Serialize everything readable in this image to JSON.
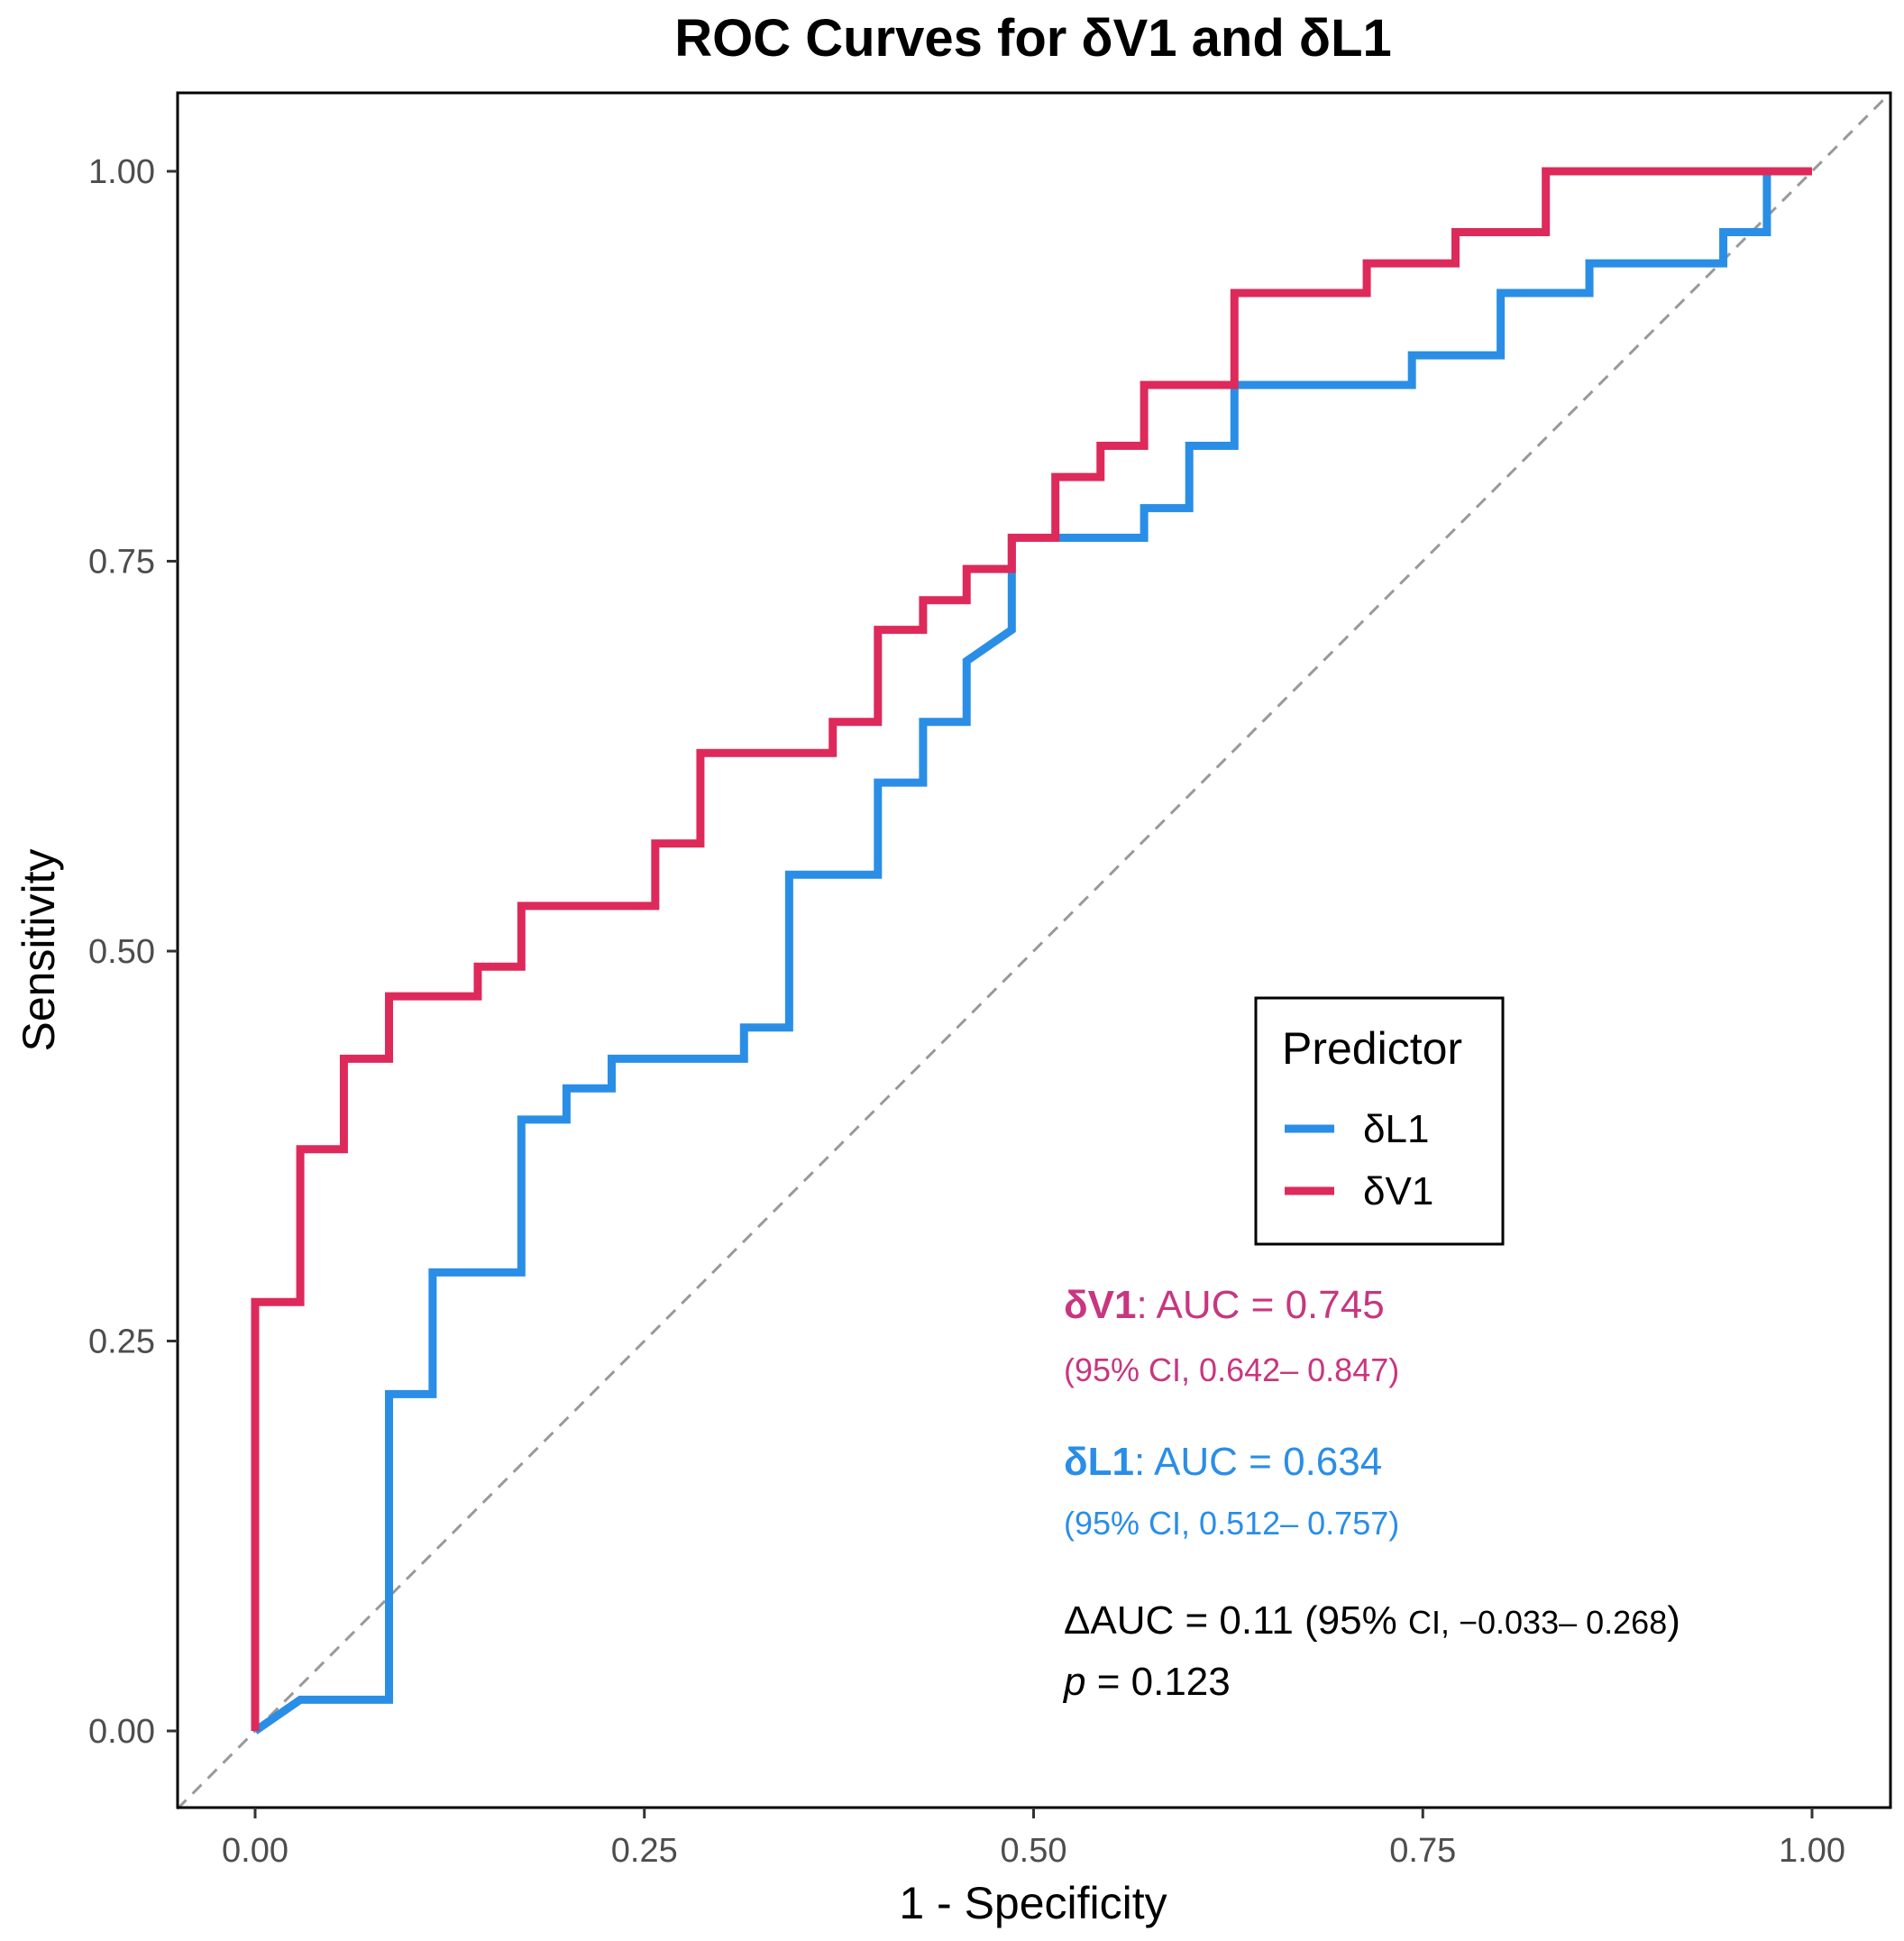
{
  "chart_data": {
    "type": "line",
    "title": "ROC Curves for δV1 and δL1",
    "xlabel": "1 - Specificity",
    "ylabel": "Sensitivity",
    "xlim": [
      -0.05,
      1.05
    ],
    "ylim": [
      -0.05,
      1.05
    ],
    "xticks": [
      0,
      0.25,
      0.5,
      0.75,
      1
    ],
    "yticks": [
      0,
      0.25,
      0.5,
      0.75,
      1
    ],
    "xtick_labels": [
      "0.00",
      "0.25",
      "0.50",
      "0.75",
      "1.00"
    ],
    "ytick_labels": [
      "0.00",
      "0.25",
      "0.50",
      "0.75",
      "1.00"
    ],
    "grid": false,
    "reference_line": {
      "style": "dashed",
      "color": "#999999",
      "from": [
        -0.05,
        -0.05
      ],
      "to": [
        1.05,
        1.05
      ]
    },
    "legend": {
      "title": "Predictor",
      "position": "right-middle",
      "entries": [
        {
          "label": "δL1",
          "color": "#2a8ee6"
        },
        {
          "label": "δV1",
          "color": "#dd2a5b"
        }
      ]
    },
    "series": [
      {
        "name": "δL1",
        "color": "#2a8ee6",
        "points": [
          [
            0,
            0
          ],
          [
            0.029,
            0.02
          ],
          [
            0.086,
            0.02
          ],
          [
            0.086,
            0.216
          ],
          [
            0.114,
            0.216
          ],
          [
            0.114,
            0.294
          ],
          [
            0.171,
            0.294
          ],
          [
            0.171,
            0.392
          ],
          [
            0.2,
            0.392
          ],
          [
            0.2,
            0.412
          ],
          [
            0.229,
            0.412
          ],
          [
            0.229,
            0.431
          ],
          [
            0.314,
            0.431
          ],
          [
            0.314,
            0.451
          ],
          [
            0.343,
            0.451
          ],
          [
            0.343,
            0.549
          ],
          [
            0.4,
            0.549
          ],
          [
            0.4,
            0.608
          ],
          [
            0.429,
            0.608
          ],
          [
            0.429,
            0.647
          ],
          [
            0.457,
            0.647
          ],
          [
            0.457,
            0.686
          ],
          [
            0.486,
            0.706
          ],
          [
            0.486,
            0.765
          ],
          [
            0.571,
            0.765
          ],
          [
            0.571,
            0.784
          ],
          [
            0.6,
            0.784
          ],
          [
            0.6,
            0.824
          ],
          [
            0.629,
            0.824
          ],
          [
            0.629,
            0.863
          ],
          [
            0.743,
            0.863
          ],
          [
            0.743,
            0.882
          ],
          [
            0.8,
            0.882
          ],
          [
            0.8,
            0.922
          ],
          [
            0.857,
            0.922
          ],
          [
            0.857,
            0.941
          ],
          [
            0.943,
            0.941
          ],
          [
            0.943,
            0.961
          ],
          [
            0.971,
            0.961
          ],
          [
            0.971,
            1.0
          ],
          [
            1.0,
            1.0
          ]
        ]
      },
      {
        "name": "δV1",
        "color": "#dd2a5b",
        "points": [
          [
            0,
            0
          ],
          [
            0,
            0.275
          ],
          [
            0.029,
            0.275
          ],
          [
            0.029,
            0.373
          ],
          [
            0.057,
            0.373
          ],
          [
            0.057,
            0.431
          ],
          [
            0.086,
            0.431
          ],
          [
            0.086,
            0.471
          ],
          [
            0.143,
            0.471
          ],
          [
            0.143,
            0.49
          ],
          [
            0.171,
            0.49
          ],
          [
            0.171,
            0.529
          ],
          [
            0.257,
            0.529
          ],
          [
            0.257,
            0.569
          ],
          [
            0.286,
            0.569
          ],
          [
            0.286,
            0.627
          ],
          [
            0.371,
            0.627
          ],
          [
            0.371,
            0.647
          ],
          [
            0.4,
            0.647
          ],
          [
            0.4,
            0.706
          ],
          [
            0.429,
            0.706
          ],
          [
            0.429,
            0.725
          ],
          [
            0.457,
            0.725
          ],
          [
            0.457,
            0.745
          ],
          [
            0.486,
            0.745
          ],
          [
            0.486,
            0.765
          ],
          [
            0.514,
            0.765
          ],
          [
            0.514,
            0.804
          ],
          [
            0.543,
            0.804
          ],
          [
            0.543,
            0.824
          ],
          [
            0.571,
            0.824
          ],
          [
            0.571,
            0.863
          ],
          [
            0.629,
            0.863
          ],
          [
            0.629,
            0.922
          ],
          [
            0.714,
            0.922
          ],
          [
            0.714,
            0.941
          ],
          [
            0.771,
            0.941
          ],
          [
            0.771,
            0.961
          ],
          [
            0.829,
            0.961
          ],
          [
            0.829,
            1.0
          ],
          [
            1.0,
            1.0
          ]
        ]
      }
    ],
    "annotations": {
      "v1_auc": {
        "name": "δV1",
        "text": ": AUC = 0.745",
        "ci": "(95% CI, 0.642– 0.847)",
        "color": "#c8367f"
      },
      "l1_auc": {
        "name": "δL1",
        "text": ": AUC = 0.634",
        "ci": "(95% CI, 0.512– 0.757)",
        "color": "#2a8ee6"
      },
      "delta_auc": {
        "main": "ΔAUC = 0.11 (95% ",
        "ci": "CI, −0.033– 0.268",
        "close": ")"
      },
      "p_value": {
        "symbol": "p",
        "text": " = 0.123"
      }
    }
  }
}
